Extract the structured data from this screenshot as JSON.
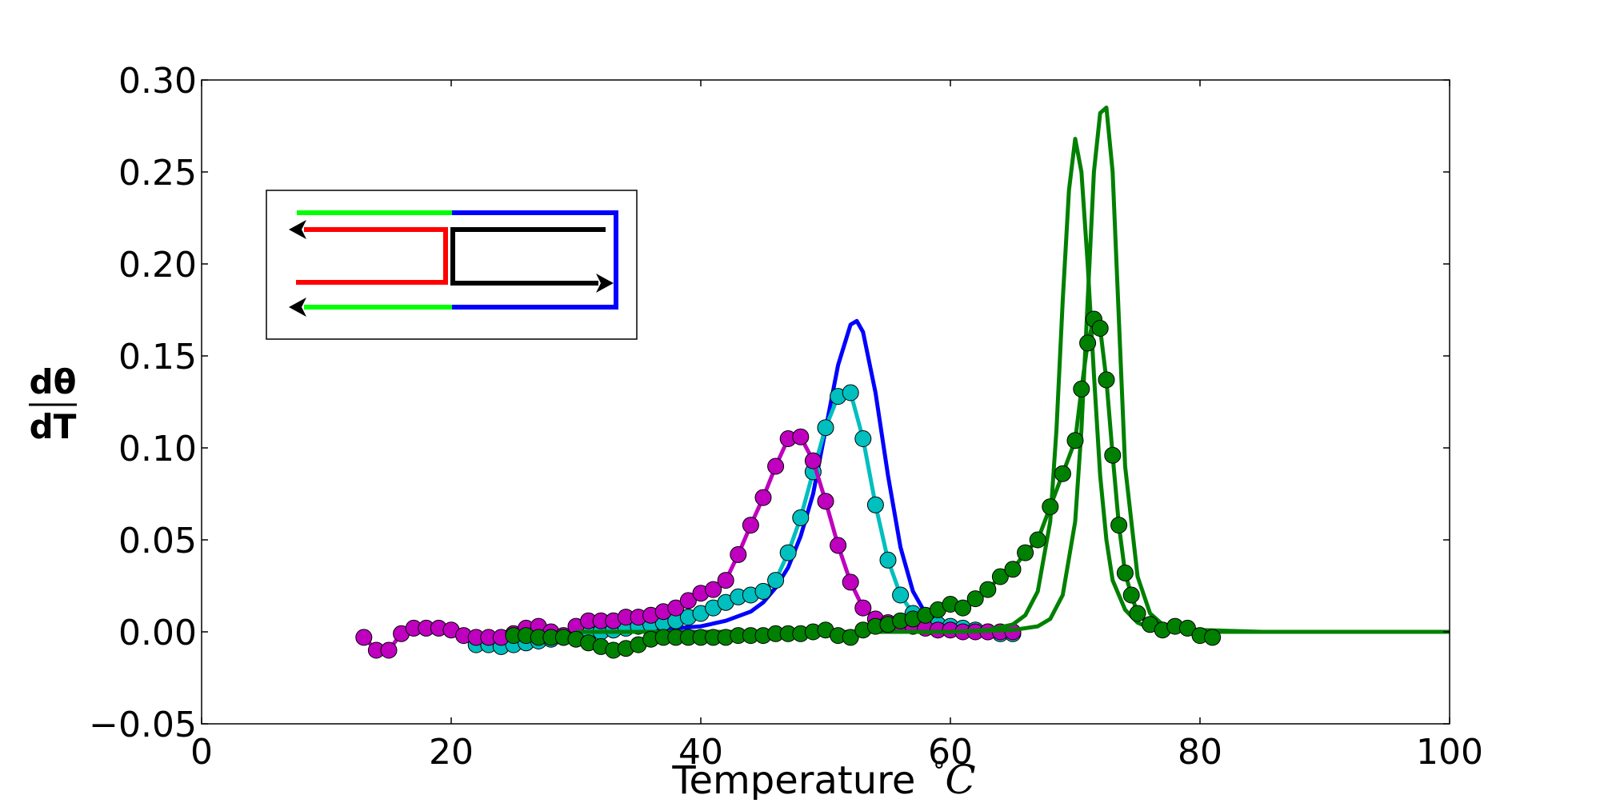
{
  "chart_data": {
    "type": "line",
    "title": "",
    "xlabel": "Temperature",
    "xlabel_unit": "°C",
    "ylabel_top": "dθ",
    "ylabel_bottom": "dT",
    "xlim": [
      0,
      100
    ],
    "ylim": [
      -0.05,
      0.3
    ],
    "xticks": [
      0,
      20,
      40,
      60,
      80,
      100
    ],
    "xtick_labels": [
      "0",
      "20",
      "40",
      "60",
      "80",
      "100"
    ],
    "yticks": [
      -0.05,
      0.0,
      0.05,
      0.1,
      0.15,
      0.2,
      0.25,
      0.3
    ],
    "ytick_labels": [
      "−0.05",
      "0.00",
      "0.05",
      "0.10",
      "0.15",
      "0.20",
      "0.25",
      "0.30"
    ],
    "grid": false,
    "legend": "none",
    "inset": "top-left",
    "series": [
      {
        "color": "#0000ff",
        "style": "line",
        "x": [
          25,
          30,
          35,
          38,
          40,
          42,
          44,
          45,
          46,
          47,
          48,
          49,
          50,
          51,
          52,
          52.5,
          53,
          54,
          55,
          56,
          57,
          58,
          60,
          65
        ],
        "y": [
          0,
          0.0003,
          0.001,
          0.002,
          0.003,
          0.006,
          0.011,
          0.016,
          0.024,
          0.035,
          0.052,
          0.075,
          0.11,
          0.145,
          0.167,
          0.169,
          0.163,
          0.13,
          0.085,
          0.046,
          0.022,
          0.01,
          0.002,
          0
        ]
      },
      {
        "color": "#00bfbf",
        "style": "line+marker",
        "x": [
          22,
          23,
          24,
          25,
          26,
          27,
          28,
          29,
          30,
          31,
          32,
          33,
          34,
          35,
          36,
          37,
          38,
          39,
          40,
          41,
          42,
          43,
          44,
          45,
          46,
          47,
          48,
          49,
          50,
          51,
          52,
          53,
          54,
          55,
          56,
          57,
          58,
          59,
          60,
          61,
          62,
          63,
          64,
          65
        ],
        "y": [
          -0.007,
          -0.007,
          -0.008,
          -0.007,
          -0.006,
          -0.005,
          -0.004,
          -0.003,
          -0.002,
          -0.001,
          0.0,
          0.001,
          0.002,
          0.003,
          0.004,
          0.005,
          0.006,
          0.008,
          0.01,
          0.013,
          0.016,
          0.019,
          0.02,
          0.022,
          0.028,
          0.043,
          0.062,
          0.087,
          0.111,
          0.128,
          0.13,
          0.105,
          0.069,
          0.039,
          0.02,
          0.01,
          0.006,
          0.004,
          0.003,
          0.002,
          0.001,
          0.0,
          -0.001,
          -0.001
        ]
      },
      {
        "color": "#bf00bf",
        "style": "line+marker",
        "x": [
          13,
          14,
          15,
          16,
          17,
          18,
          19,
          20,
          21,
          22,
          23,
          24,
          25,
          26,
          27,
          28,
          29,
          30,
          31,
          32,
          33,
          34,
          35,
          36,
          37,
          38,
          39,
          40,
          41,
          42,
          43,
          44,
          45,
          46,
          47,
          48,
          49,
          50,
          51,
          52,
          53,
          54,
          55,
          56,
          57,
          58,
          59,
          60,
          61,
          62,
          63,
          64,
          65
        ],
        "y": [
          -0.003,
          -0.01,
          -0.01,
          -0.001,
          0.002,
          0.002,
          0.002,
          0.001,
          -0.002,
          -0.003,
          -0.003,
          -0.003,
          -0.001,
          0.002,
          0.003,
          0.0,
          -0.002,
          0.003,
          0.006,
          0.006,
          0.006,
          0.008,
          0.008,
          0.009,
          0.011,
          0.013,
          0.017,
          0.021,
          0.023,
          0.028,
          0.042,
          0.058,
          0.073,
          0.09,
          0.105,
          0.106,
          0.093,
          0.071,
          0.047,
          0.027,
          0.013,
          0.007,
          0.005,
          0.004,
          0.003,
          0.002,
          0.001,
          0.001,
          0.0,
          0.0,
          0.0,
          0.0,
          0.0
        ]
      },
      {
        "color": "#008000",
        "style": "line",
        "x": [
          30,
          40,
          50,
          60,
          63,
          65,
          66,
          67,
          68,
          68.5,
          69,
          69.5,
          70,
          70.5,
          71,
          71.5,
          72,
          72.5,
          73,
          74,
          75,
          76,
          78,
          80,
          85,
          100
        ],
        "y": [
          0,
          0,
          0,
          0,
          0.001,
          0.004,
          0.009,
          0.022,
          0.06,
          0.11,
          0.18,
          0.24,
          0.268,
          0.25,
          0.2,
          0.14,
          0.085,
          0.05,
          0.028,
          0.012,
          0.005,
          0.002,
          0.001,
          0,
          0,
          0
        ]
      },
      {
        "color": "#008000",
        "style": "line",
        "x": [
          30,
          40,
          50,
          60,
          65,
          67,
          68,
          69,
          70,
          70.5,
          71,
          71.5,
          72,
          72.5,
          73,
          73.5,
          74,
          75,
          76,
          77,
          78,
          80,
          85,
          100
        ],
        "y": [
          0,
          0,
          0,
          0,
          0.001,
          0.003,
          0.007,
          0.02,
          0.06,
          0.11,
          0.18,
          0.25,
          0.282,
          0.285,
          0.25,
          0.17,
          0.09,
          0.03,
          0.01,
          0.004,
          0.002,
          0.001,
          0,
          0
        ]
      },
      {
        "color": "#008000",
        "style": "line+marker",
        "x": [
          25,
          26,
          27,
          28,
          29,
          30,
          31,
          32,
          33,
          34,
          35,
          36,
          37,
          38,
          39,
          40,
          41,
          42,
          43,
          44,
          45,
          46,
          47,
          48,
          49,
          50,
          51,
          52,
          53,
          54,
          55,
          56,
          57,
          58,
          59,
          60,
          61,
          62,
          63,
          64,
          65,
          66,
          67,
          68,
          69,
          70,
          70.5,
          71,
          71.5,
          72,
          72.5,
          73,
          73.5,
          74,
          74.5,
          75,
          76,
          77,
          78,
          79,
          80,
          81
        ],
        "y": [
          -0.002,
          -0.002,
          -0.003,
          -0.003,
          -0.003,
          -0.004,
          -0.006,
          -0.008,
          -0.01,
          -0.009,
          -0.007,
          -0.004,
          -0.003,
          -0.003,
          -0.003,
          -0.003,
          -0.003,
          -0.003,
          -0.002,
          -0.002,
          -0.002,
          -0.001,
          -0.001,
          -0.001,
          0.0,
          0.001,
          -0.002,
          -0.003,
          0.001,
          0.003,
          0.004,
          0.006,
          0.007,
          0.009,
          0.012,
          0.015,
          0.013,
          0.018,
          0.023,
          0.03,
          0.034,
          0.043,
          0.05,
          0.068,
          0.086,
          0.104,
          0.132,
          0.157,
          0.17,
          0.165,
          0.137,
          0.096,
          0.058,
          0.032,
          0.02,
          0.01,
          0.004,
          0.001,
          0.003,
          0.002,
          -0.002,
          -0.003
        ]
      }
    ]
  }
}
